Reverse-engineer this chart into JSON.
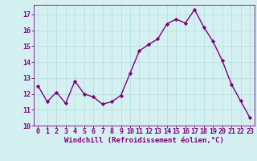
{
  "x": [
    0,
    1,
    2,
    3,
    4,
    5,
    6,
    7,
    8,
    9,
    10,
    11,
    12,
    13,
    14,
    15,
    16,
    17,
    18,
    19,
    20,
    21,
    22,
    23
  ],
  "y": [
    12.5,
    11.5,
    12.1,
    11.4,
    12.8,
    12.0,
    11.8,
    11.35,
    11.5,
    11.9,
    13.3,
    14.7,
    15.1,
    15.45,
    16.4,
    16.7,
    16.45,
    17.3,
    16.2,
    15.3,
    14.1,
    12.6,
    11.55,
    10.5
  ],
  "line_color": "#800080",
  "marker": "D",
  "marker_size": 2.2,
  "bg_color": "#d4f0f0",
  "grid_color": "#b0dede",
  "xlabel": "Windchill (Refroidissement éolien,°C)",
  "xlabel_color": "#800080",
  "tick_color": "#800080",
  "ylim": [
    10,
    17.6
  ],
  "xlim": [
    -0.5,
    23.5
  ],
  "yticks": [
    10,
    11,
    12,
    13,
    14,
    15,
    16,
    17
  ],
  "xticks": [
    0,
    1,
    2,
    3,
    4,
    5,
    6,
    7,
    8,
    9,
    10,
    11,
    12,
    13,
    14,
    15,
    16,
    17,
    18,
    19,
    20,
    21,
    22,
    23
  ],
  "tick_fontsize": 6.0,
  "xlabel_fontsize": 6.5,
  "linewidth": 1.0
}
